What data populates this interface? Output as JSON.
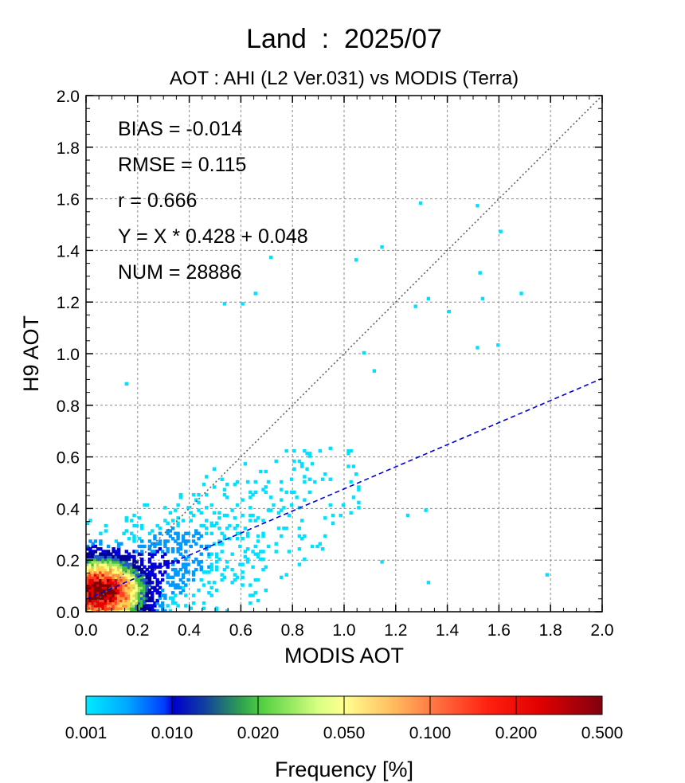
{
  "chart_data": {
    "type": "heatmap",
    "title": "Land  :  2025/07",
    "subtitle": "AOT : AHI (L2 Ver.031) vs MODIS (Terra)",
    "xlabel": "MODIS AOT",
    "ylabel": "H9 AOT",
    "xlim": [
      0.0,
      2.0
    ],
    "ylim": [
      0.0,
      2.0
    ],
    "x_ticks": [
      "0.0",
      "0.2",
      "0.4",
      "0.6",
      "0.8",
      "1.0",
      "1.2",
      "1.4",
      "1.6",
      "1.8",
      "2.0"
    ],
    "y_ticks": [
      "0.0",
      "0.2",
      "0.4",
      "0.6",
      "0.8",
      "1.0",
      "1.2",
      "1.4",
      "1.6",
      "1.8",
      "2.0"
    ],
    "grid": true,
    "stats": [
      "BIAS = -0.014",
      "RMSE = 0.115",
      "r = 0.666",
      "Y = X * 0.428 + 0.048",
      "NUM = 28886"
    ],
    "one_to_one_line": {
      "color": "#606060",
      "style": "dotted"
    },
    "regression_line": {
      "slope": 0.428,
      "intercept": 0.048,
      "color": "#0000dd",
      "style": "dashed"
    },
    "density_core": {
      "center": [
        0.06,
        0.08
      ],
      "peak_frequency_percent": 0.5
    },
    "scatter_outliers": [
      [
        1.29,
        1.59
      ],
      [
        1.51,
        1.58
      ],
      [
        1.6,
        1.48
      ],
      [
        1.14,
        1.42
      ],
      [
        1.04,
        1.37
      ],
      [
        0.71,
        1.38
      ],
      [
        1.52,
        1.32
      ],
      [
        1.53,
        1.22
      ],
      [
        1.68,
        1.24
      ],
      [
        1.32,
        1.22
      ],
      [
        1.27,
        1.19
      ],
      [
        1.4,
        1.17
      ],
      [
        1.51,
        1.03
      ],
      [
        1.59,
        1.04
      ],
      [
        1.07,
        1.01
      ],
      [
        1.11,
        0.94
      ],
      [
        1.78,
        0.15
      ],
      [
        1.32,
        0.12
      ],
      [
        1.14,
        0.2
      ],
      [
        0.15,
        0.89
      ],
      [
        0.6,
        1.2
      ],
      [
        0.53,
        1.2
      ],
      [
        0.65,
        1.24
      ],
      [
        1.24,
        0.38
      ],
      [
        1.31,
        0.4
      ]
    ],
    "colorbar": {
      "label": "Frequency [%]",
      "tick_labels": [
        "0.001",
        "0.010",
        "0.020",
        "0.050",
        "0.100",
        "0.200",
        "0.500"
      ],
      "colors": [
        "#00e0ff",
        "#0099ff",
        "#0000dd",
        "#000099",
        "#1f5fbf",
        "#3fbf3f",
        "#a8e060",
        "#ffff80",
        "#ffd050",
        "#ff9040",
        "#ff4020",
        "#e80000",
        "#800000"
      ]
    }
  }
}
